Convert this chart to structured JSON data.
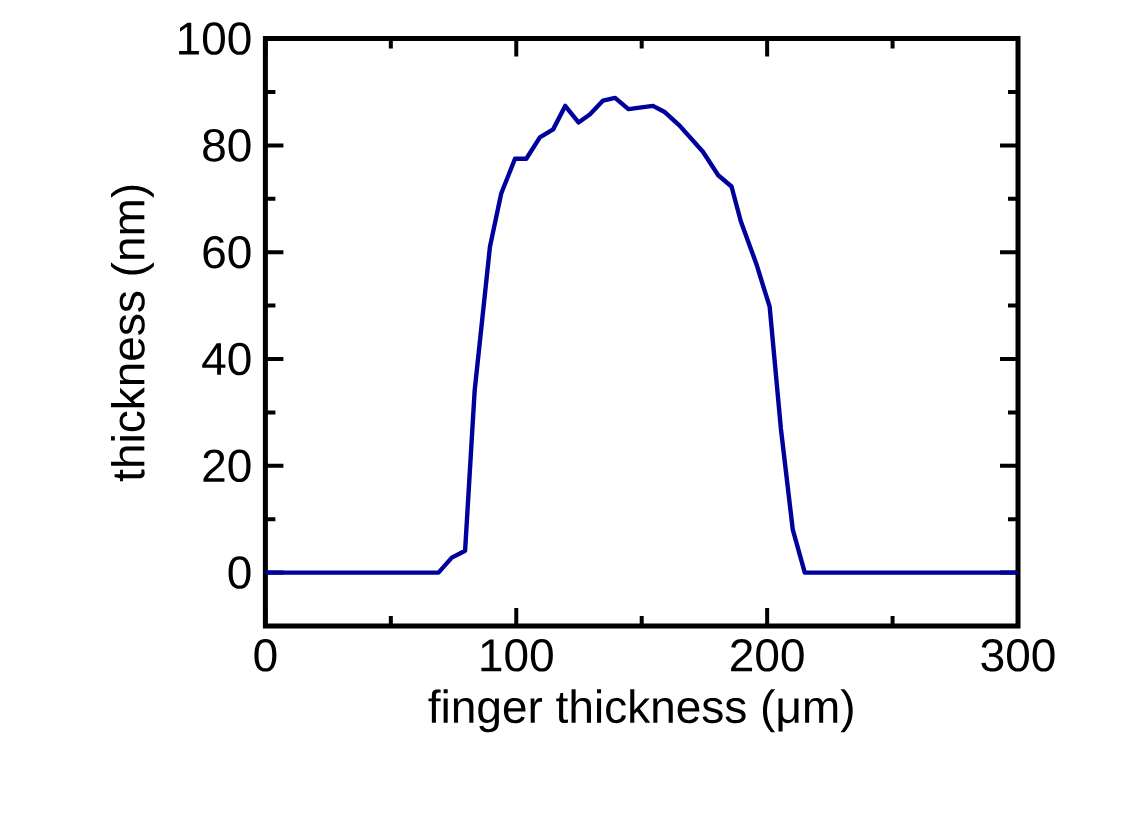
{
  "chart_data": {
    "type": "line",
    "xlabel": "finger thickness (μm)",
    "ylabel": "thickness (nm)",
    "xlim": [
      0,
      300
    ],
    "xticks": [
      0,
      100,
      200,
      300
    ],
    "ylim": [
      -10,
      100
    ],
    "yticks": [
      0,
      20,
      40,
      60,
      80,
      100
    ],
    "marker": "none",
    "line_style": "solid",
    "grid": false,
    "series": [
      {
        "color": "#00009c",
        "x": [
          0,
          69,
          74.3,
          79.6,
          83.4,
          89.5,
          94,
          99.5,
          104,
          109.4,
          114.7,
          119.5,
          124.8,
          129.3,
          134.6,
          139.4,
          144.7,
          154.5,
          159.3,
          165.1,
          174.4,
          180.5,
          185.8,
          189.5,
          195.7,
          201,
          205.5,
          210.2,
          215,
          300
        ],
        "values": [
          0,
          0,
          2.8,
          4.1,
          34,
          61,
          71,
          77.5,
          77.5,
          81.5,
          83,
          87.4,
          84.3,
          85.8,
          88.4,
          88.9,
          86.8,
          87.4,
          86.2,
          83.7,
          78.8,
          74.4,
          72.3,
          65.8,
          57.8,
          49.8,
          26.9,
          8.1,
          0,
          0
        ]
      }
    ]
  }
}
